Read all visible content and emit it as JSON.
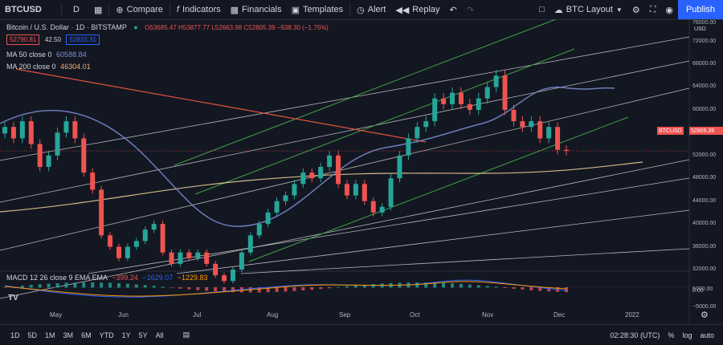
{
  "toolbar": {
    "symbol": "BTCUSD",
    "interval": "D",
    "compare": "Compare",
    "indicators": "Indicators",
    "financials": "Financials",
    "templates": "Templates",
    "alert": "Alert",
    "replay": "Replay",
    "layout": "BTC Layout",
    "publish": "Publish"
  },
  "legend": {
    "title": "Bitcoin / U.S. Dollar · 1D · BITSTAMP",
    "ohlc": "O53685.47 H53877.77 L52663.98 C52805.39 −938.30 (−1.75%)",
    "bid": "52790.81",
    "spread": "42.50",
    "ask": "52833.31",
    "ma50_label": "MA 50 close 0",
    "ma50_value": "60588.84",
    "ma200_label": "MA 200 close 0",
    "ma200_value": "46304.01",
    "macd_label": "MACD 12 26 close 9 EMA EMA",
    "macd_hist": "−399.24",
    "macd_line": "−1629.07",
    "macd_signal": "−1229.83"
  },
  "price_axis": {
    "labels": [
      "72000.00",
      "68000.00",
      "64000.00",
      "60000.00",
      "56000.00",
      "52000.00",
      "48000.00",
      "44000.00",
      "40000.00",
      "36000.00",
      "32000.00"
    ],
    "currency": "USD",
    "top_label": "76000.00",
    "macd_labels": [
      "5000.00",
      "0.00",
      "−5000.00"
    ],
    "current_symbol": "BTCUSD",
    "current_price": "52805.39"
  },
  "time_axis": {
    "labels": [
      "May",
      "Jun",
      "Jul",
      "Aug",
      "Sep",
      "Oct",
      "Nov",
      "Dec",
      "2022"
    ]
  },
  "bottom": {
    "ranges": [
      "1D",
      "5D",
      "1M",
      "3M",
      "6M",
      "YTD",
      "1Y",
      "5Y",
      "All"
    ],
    "clock": "02:28:30 (UTC)",
    "percent": "%",
    "log": "log",
    "auto": "auto"
  },
  "colors": {
    "up": "#26a69a",
    "down": "#ef5350",
    "ma50": "#7b8fd4",
    "ma200": "#f5d49a",
    "green_channel": "#43a047",
    "red_trend": "#e0533c",
    "accent": "#2962ff"
  },
  "chart_data": {
    "type": "candlestick",
    "close_approx": [
      57000,
      55000,
      58000,
      54000,
      50000,
      52000,
      56000,
      58000,
      55000,
      49000,
      46000,
      38000,
      36000,
      34000,
      36000,
      37000,
      39000,
      40000,
      35000,
      33000,
      35000,
      34000,
      35000,
      33000,
      31000,
      30000,
      32000,
      35000,
      38000,
      40000,
      42000,
      44000,
      45000,
      47000,
      49000,
      48000,
      50000,
      52000,
      47000,
      45000,
      47000,
      44000,
      42000,
      43000,
      48000,
      52000,
      55000,
      57000,
      58000,
      62000,
      61000,
      63000,
      61000,
      60000,
      62000,
      64000,
      66000,
      60000,
      58000,
      57000,
      58000,
      55000,
      57000,
      53000,
      52805
    ],
    "ylim": [
      30000,
      74000
    ]
  }
}
